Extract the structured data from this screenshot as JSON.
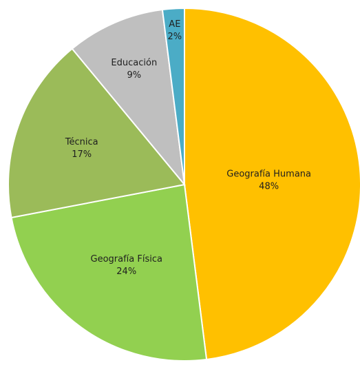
{
  "chart_data": {
    "type": "pie",
    "slices": [
      {
        "label": "Geografía Humana",
        "value": 48,
        "value_label": "48%",
        "color": "#FFC000"
      },
      {
        "label": "Geografía Física",
        "value": 24,
        "value_label": "24%",
        "color": "#92D050"
      },
      {
        "label": "Técnica",
        "value": 17,
        "value_label": "17%",
        "color": "#9BBB59"
      },
      {
        "label": "Educación",
        "value": 9,
        "value_label": "9%",
        "color": "#BFBFBF"
      },
      {
        "label": "AE",
        "value": 2,
        "value_label": "2%",
        "color": "#4BACC6"
      }
    ],
    "start_angle": "12 o'clock",
    "direction": "clockwise",
    "legend": "none"
  }
}
